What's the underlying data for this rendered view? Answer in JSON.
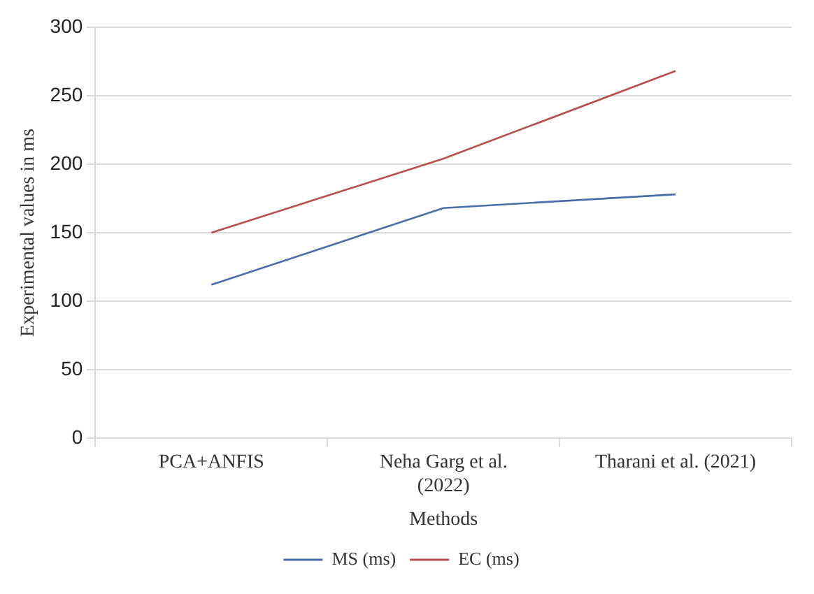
{
  "chart_data": {
    "type": "line",
    "xlabel": "Methods",
    "ylabel": "Experimental values in ms",
    "categories": [
      "PCA+ANFIS",
      "Neha Garg et al. (2022)",
      "Tharani et al. (2021)"
    ],
    "series": [
      {
        "name": "MS (ms)",
        "color": "#4a6fa8",
        "values": [
          112,
          168,
          178
        ]
      },
      {
        "name": "EC (ms)",
        "color": "#b8504e",
        "values": [
          150,
          204,
          268
        ]
      }
    ],
    "ylim": [
      0,
      300
    ],
    "yticks": [
      0,
      50,
      100,
      150,
      200,
      250,
      300
    ],
    "grid": "y",
    "legend": "bottom",
    "marker": "none",
    "line_style": "solid"
  }
}
